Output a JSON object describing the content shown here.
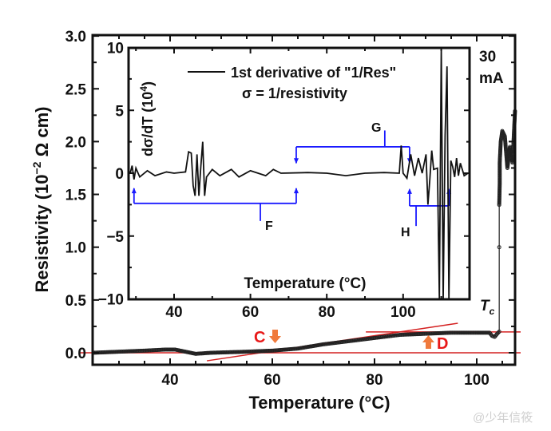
{
  "chart_data": [
    {
      "type": "scatter",
      "xlabel": "Temperature (°C)",
      "ylabel": "Resistivity (10⁻² Ω cm)",
      "xlim": [
        25,
        107.5
      ],
      "ylim": [
        -0.11,
        3.0
      ],
      "xticks": [
        "40",
        "60",
        "80",
        "100"
      ],
      "yticks": [
        "0.0",
        "0.5",
        "1.0",
        "1.5",
        "2.0",
        "2.5",
        "3.0"
      ],
      "series": [
        {
          "points": [
            [
              25,
              0.0
            ],
            [
              30,
              0.01
            ],
            [
              35,
              0.02
            ],
            [
              39,
              0.03
            ],
            [
              41,
              0.03
            ],
            [
              43,
              0.01
            ],
            [
              45,
              -0.01
            ],
            [
              48,
              0.0
            ],
            [
              55,
              0.01
            ],
            [
              60,
              0.02
            ],
            [
              65,
              0.04
            ],
            [
              70,
              0.08
            ],
            [
              75,
              0.11
            ],
            [
              80,
              0.14
            ],
            [
              85,
              0.17
            ],
            [
              90,
              0.18
            ],
            [
              95,
              0.19
            ],
            [
              100,
              0.19
            ],
            [
              102.5,
              0.19
            ],
            [
              103,
              0.16
            ],
            [
              103.5,
              0.15
            ],
            [
              104,
              0.18
            ],
            [
              104.4,
              0.2
            ],
            [
              104.4,
              1.0
            ],
            [
              104.4,
              1.4
            ],
            [
              104.5,
              1.6
            ],
            [
              104.5,
              1.8
            ],
            [
              104.7,
              2.0
            ],
            [
              105,
              2.1
            ],
            [
              105.5,
              2.05
            ],
            [
              106,
              1.75
            ],
            [
              106.5,
              1.95
            ],
            [
              107,
              1.8
            ],
            [
              107.3,
              2.1
            ],
            [
              107.5,
              2.3
            ]
          ]
        }
      ],
      "annotations": {
        "current": "30",
        "current_unit": "mA",
        "tc_label": "T",
        "tc_sub": "c",
        "c_label": "C",
        "d_label": "D"
      },
      "colors": {
        "data": "#222222",
        "fit_lines": "#d42020",
        "arrows": "#f07a3c",
        "labels": "#e81818"
      }
    },
    {
      "type": "line",
      "legend": "1st derivative of \"1/Res\"",
      "subtitle": "σ = 1/resistivity",
      "xlabel": "Temperature (°C)",
      "ylabel": "dσ/dT (10⁴)",
      "xlim": [
        28.3,
        117.4
      ],
      "ylim": [
        -10,
        10
      ],
      "xticks": [
        "40",
        "60",
        "80",
        "100"
      ],
      "yticks": [
        "−10",
        "−5",
        "0",
        "5",
        "10"
      ],
      "series": [
        {
          "name": "1st derivative of \"1/Res\"",
          "points": [
            [
              28.5,
              0
            ],
            [
              29,
              0.6
            ],
            [
              29.5,
              -0.5
            ],
            [
              30,
              0.4
            ],
            [
              31,
              -0.3
            ],
            [
              33,
              0.2
            ],
            [
              35,
              -0.2
            ],
            [
              38,
              0.1
            ],
            [
              40,
              0
            ],
            [
              43,
              0.1
            ],
            [
              43.8,
              1.7
            ],
            [
              44.5,
              1.6
            ],
            [
              45,
              -1
            ],
            [
              45.5,
              -1.8
            ],
            [
              46,
              1.5
            ],
            [
              46.5,
              -1.8
            ],
            [
              47,
              0.5
            ],
            [
              47.5,
              2.5
            ],
            [
              48,
              -1.8
            ],
            [
              48.5,
              -0.3
            ],
            [
              50,
              0.3
            ],
            [
              52,
              -0.2
            ],
            [
              55,
              0.3
            ],
            [
              57,
              -0.3
            ],
            [
              60,
              0.2
            ],
            [
              64,
              -0.2
            ],
            [
              66,
              0.3
            ],
            [
              68,
              0
            ],
            [
              75,
              0.05
            ],
            [
              80,
              0
            ],
            [
              85,
              -0.2
            ],
            [
              90,
              0
            ],
            [
              95,
              0.05
            ],
            [
              99,
              0
            ],
            [
              99.5,
              2.2
            ],
            [
              100,
              0
            ],
            [
              101,
              -0.4
            ],
            [
              102,
              1.5
            ],
            [
              103,
              -0.2
            ],
            [
              104,
              1.2
            ],
            [
              105,
              0
            ],
            [
              106,
              1.5
            ],
            [
              106.5,
              -2.5
            ],
            [
              107,
              -0.5
            ],
            [
              107.5,
              1.8
            ],
            [
              108,
              0.3
            ],
            [
              109,
              0.4
            ],
            [
              109.5,
              -10
            ],
            [
              110,
              10
            ],
            [
              110.5,
              -10
            ],
            [
              111,
              3
            ],
            [
              111.5,
              8.5
            ],
            [
              112,
              -10
            ],
            [
              112.5,
              1
            ],
            [
              113,
              0.5
            ],
            [
              113.5,
              -0.3
            ],
            [
              114,
              1.2
            ],
            [
              114.5,
              -0.2
            ],
            [
              115,
              0.8
            ],
            [
              116,
              -0.2
            ],
            [
              117,
              0
            ]
          ]
        }
      ],
      "annotations": {
        "f_label": "F",
        "g_label": "G",
        "h_label": "H"
      },
      "colors": {
        "line": "#111111",
        "brackets": "#1a1aff"
      }
    }
  ],
  "watermark": "@少年信筱"
}
